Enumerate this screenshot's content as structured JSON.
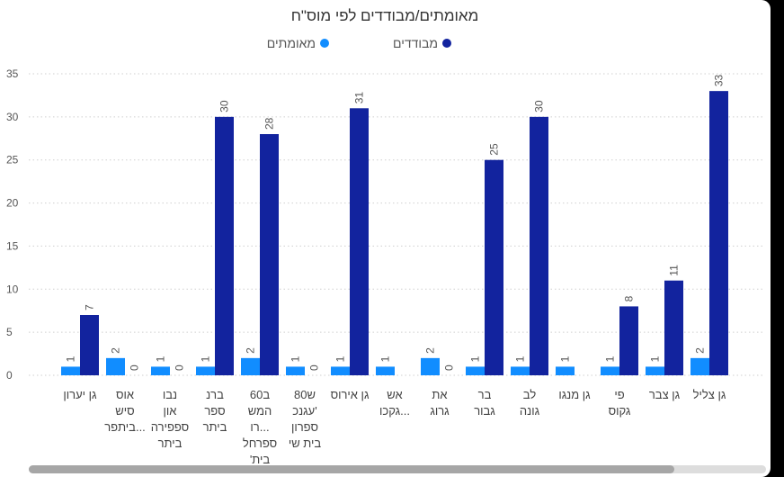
{
  "chart_data": {
    "type": "bar",
    "title": "מאומתים/מבודדים לפי מוס\"ח",
    "categories": [
      "גן צליל",
      "גן צבר",
      "פי גקוס",
      "גן מנגו",
      "לב גונה",
      "בר גבור",
      "את גרוג",
      "אש גקכו...",
      "גן אירוס",
      "80ש עגנכ' ספרון בית שי",
      "60ב המש רו... ספרחל 'בית",
      "ברנ ספר ביתר",
      "נבו און ספפירה ביתר",
      "אוס סיש ביתפר..."
    ],
    "category_lines": [
      [
        "גן צליל"
      ],
      [
        "גן צבר"
      ],
      [
        "פי",
        "גקוס"
      ],
      [
        "גן מנגו"
      ],
      [
        "לב",
        "גונה"
      ],
      [
        "בר",
        "גבור"
      ],
      [
        "את",
        "גרוג"
      ],
      [
        "אש",
        "גקכו..."
      ],
      [
        "גן אירוס"
      ],
      [
        "80ש",
        "עגנכ'",
        "ספרון",
        "בית שי"
      ],
      [
        "60ב",
        "המש",
        "רו...",
        "ספרחל",
        "'בית"
      ],
      [
        "ברנ",
        "ספר",
        "ביתר"
      ],
      [
        "נבו",
        "און",
        "ספפירה",
        "ביתר"
      ],
      [
        "אוס",
        "סיש",
        "ביתפר..."
      ]
    ],
    "series": [
      {
        "name": "מבודדים",
        "color": "#12239e",
        "values": [
          33,
          11,
          8,
          null,
          30,
          25,
          0,
          null,
          31,
          0,
          28,
          30,
          0,
          0
        ]
      },
      {
        "name": "מאומתים",
        "color": "#118dff",
        "values": [
          2,
          1,
          1,
          1,
          1,
          1,
          2,
          1,
          1,
          1,
          2,
          1,
          1,
          2
        ]
      }
    ],
    "ylim": [
      0,
      35
    ],
    "yticks": [
      0,
      5,
      10,
      15,
      20,
      25,
      30,
      35
    ],
    "grid": true,
    "legend_position": "top-right"
  },
  "last_partial_category": [
    "גן יערון"
  ],
  "last_partial_values": {
    "מבודדים": 7,
    "מאומתים": 1
  }
}
